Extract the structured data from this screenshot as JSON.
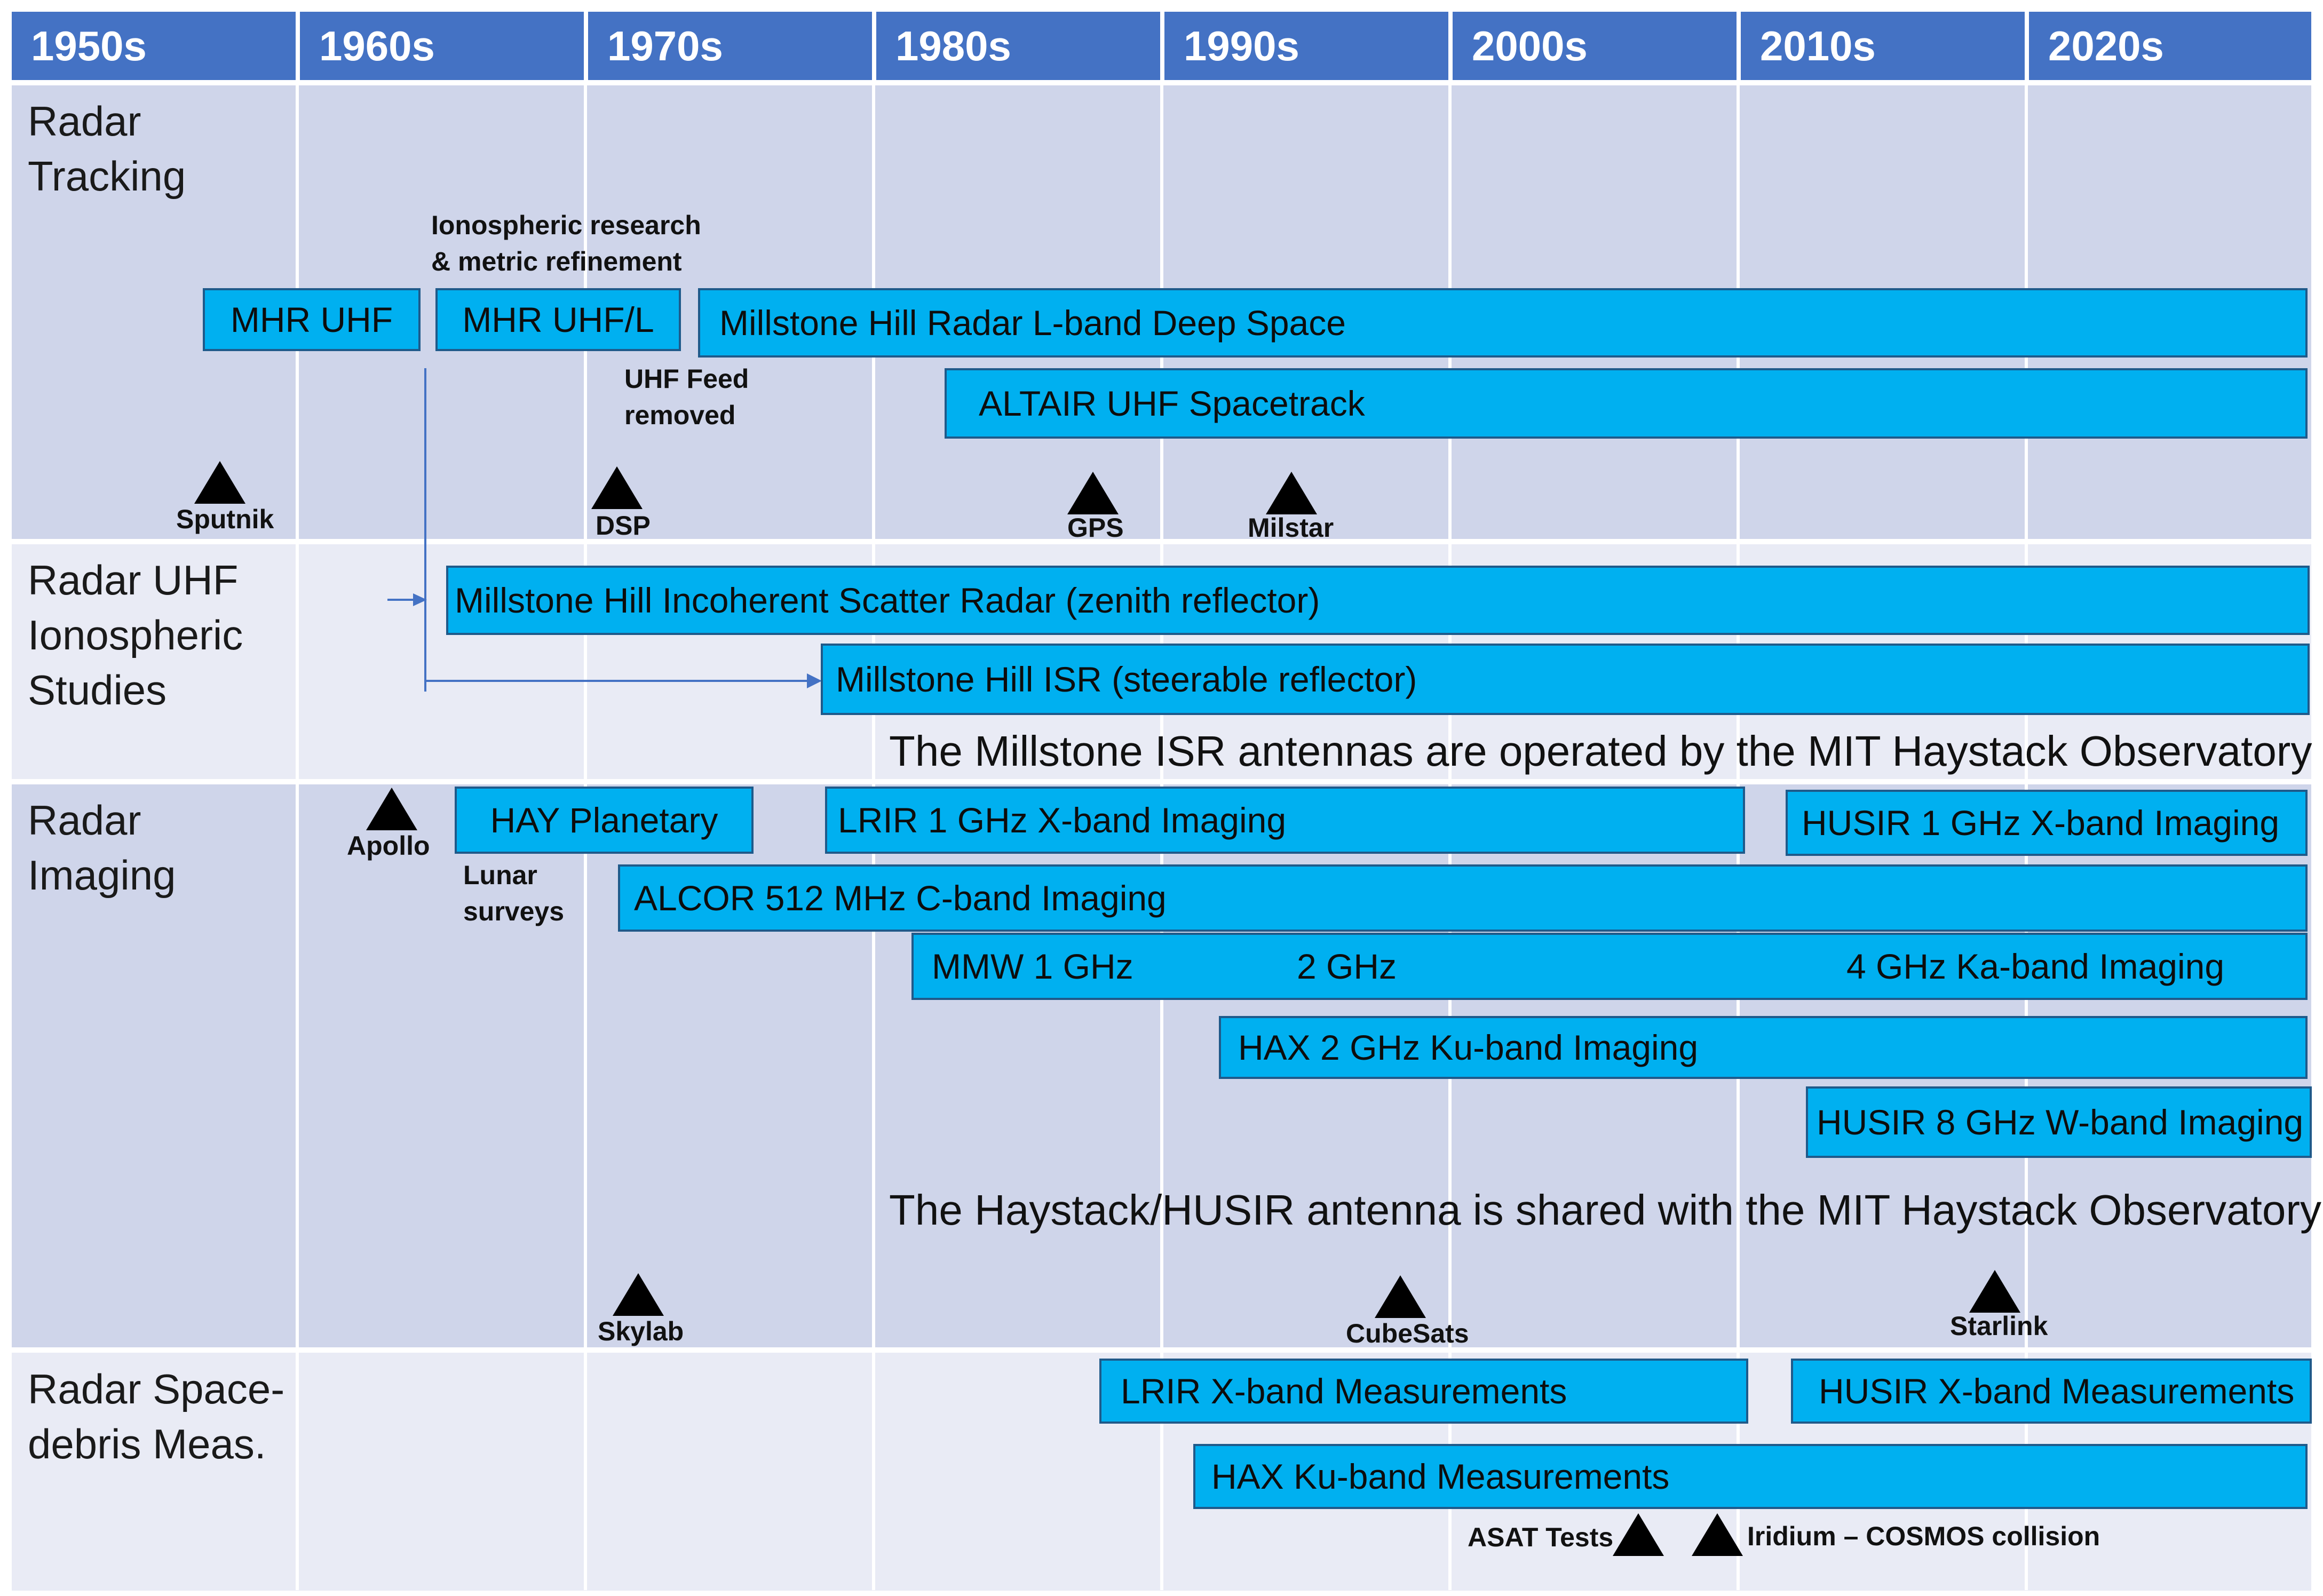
{
  "decades": [
    "1950s",
    "1960s",
    "1970s",
    "1980s",
    "1990s",
    "2000s",
    "2010s",
    "2020s"
  ],
  "colors": {
    "header": "#4472c4",
    "bar": "#00b0f0",
    "band_dark": "#cfd5ea",
    "band_light": "#e9ebf5"
  },
  "sections": {
    "tracking": "Radar\nTracking",
    "ionospheric": "Radar UHF\nIonospheric\nStudies",
    "imaging": "Radar\nImaging",
    "debris": "Radar Space-\ndebris Meas."
  },
  "bars": {
    "mhr_uhf": "MHR UHF",
    "mhr_uhfl": "MHR UHF/L",
    "millstone_deep": "Millstone Hill Radar L-band Deep Space",
    "altair": "ALTAIR UHF Spacetrack",
    "mh_isr_zenith": "Millstone Hill Incoherent Scatter Radar (zenith reflector)",
    "mh_isr_steer": "Millstone Hill ISR (steerable reflector)",
    "hay_planetary": "HAY Planetary",
    "lrir_imaging": "LRIR 1 GHz X-band Imaging",
    "husir_1ghz": "HUSIR 1 GHz X-band Imaging",
    "alcor": "ALCOR 512 MHz C-band Imaging",
    "mmw_1": "MMW 1 GHz",
    "mmw_2": "2 GHz",
    "mmw_4": "4 GHz Ka-band Imaging",
    "hax_imaging": "HAX 2 GHz Ku-band Imaging",
    "husir_8ghz": "HUSIR 8 GHz W-band Imaging",
    "lrir_meas": "LRIR X-band Measurements",
    "husir_meas": "HUSIR X-band Measurements",
    "hax_meas": "HAX Ku-band Measurements"
  },
  "notes": {
    "ionospheric_research": "Ionospheric research\n& metric refinement",
    "uhf_feed": "UHF Feed\nremoved",
    "lunar": "Lunar\nsurveys"
  },
  "captions": {
    "millstone": "The Millstone ISR antennas are operated by the MIT Haystack Observatory",
    "haystack": "The Haystack/HUSIR antenna is shared with the MIT Haystack Observatory"
  },
  "events": {
    "sputnik": "Sputnik",
    "dsp": "DSP",
    "gps": "GPS",
    "milstar": "Milstar",
    "apollo": "Apollo",
    "skylab": "Skylab",
    "cubesats": "CubeSats",
    "starlink": "Starlink",
    "asat": "ASAT Tests",
    "iridium": "Iridium – COSMOS collision"
  }
}
